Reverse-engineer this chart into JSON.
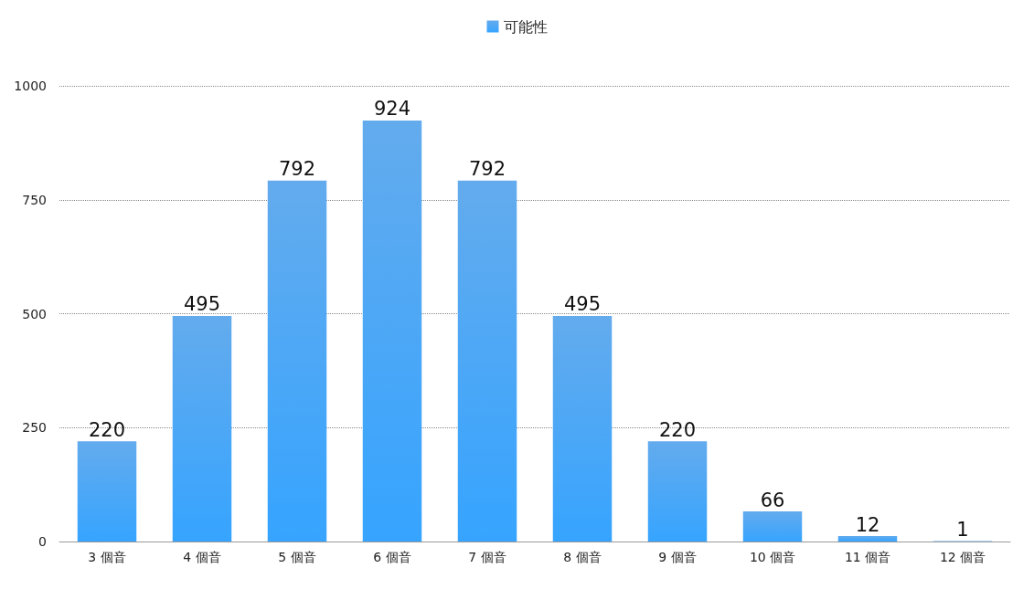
{
  "chart_data": {
    "type": "bar",
    "categories": [
      "3 個音",
      "4 個音",
      "5 個音",
      "6 個音",
      "7 個音",
      "8 個音",
      "9 個音",
      "10 個音",
      "11 個音",
      "12 個音"
    ],
    "series": [
      {
        "name": "可能性",
        "color": "#2f8fe8",
        "values": [
          220,
          495,
          792,
          924,
          792,
          495,
          220,
          66,
          12,
          1
        ]
      }
    ],
    "ylim": [
      0,
      1000
    ],
    "yticks": [
      0,
      250,
      500,
      750,
      1000
    ],
    "grid": "y",
    "legend": "top",
    "data_labels": true
  }
}
